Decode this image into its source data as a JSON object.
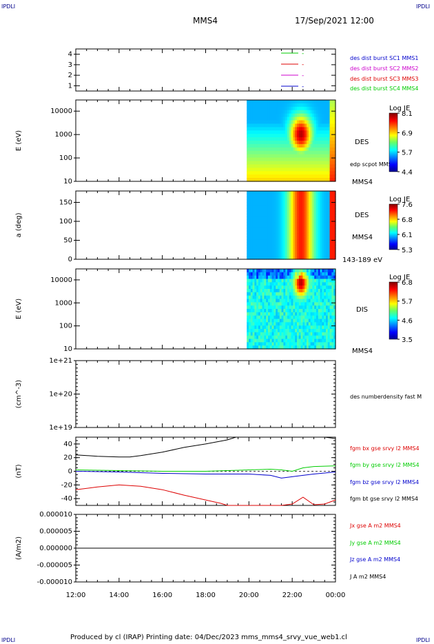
{
  "header": {
    "corner_label": "IPDLI",
    "spacecraft": "MMS4",
    "datetime": "17/Sep/2021 12:00"
  },
  "footer": {
    "text": "Produced by cl (IRAP)   Printing date: 04/Dec/2023   mms_mms4_srvy_vue_web1.cl"
  },
  "colors": {
    "blue": "#0000cc",
    "magenta": "#cc00cc",
    "red": "#dd0000",
    "green": "#00cc00",
    "black": "#000000"
  },
  "x_axis": {
    "ticks": [
      "12:00",
      "14:00",
      "16:00",
      "18:00",
      "20:00",
      "22:00",
      "00:00"
    ],
    "range_hours": [
      12,
      24
    ]
  },
  "chart_data": [
    {
      "type": "line",
      "panel": "spacecraft-config",
      "ylim": [
        0.5,
        4.5
      ],
      "y_ticks": [
        "1",
        "2",
        "3",
        "4"
      ],
      "legend": [
        {
          "name": "des dist burst SC1 MMS1",
          "color": "#0000cc"
        },
        {
          "name": "des dist burst SC2 MMS2",
          "color": "#cc00cc"
        },
        {
          "name": "des dist burst SC3 MMS3",
          "color": "#dd0000"
        },
        {
          "name": "des dist burst SC4 MMS4",
          "color": "#00cc00"
        }
      ],
      "inner_legend": [
        {
          "color": "#00cc00",
          "mark": "-"
        },
        {
          "color": "#dd0000",
          "mark": "-"
        },
        {
          "color": "#cc00cc",
          "mark": "-"
        },
        {
          "color": "#0000cc",
          "mark": "-"
        }
      ]
    },
    {
      "type": "heatmap",
      "panel": "des-energy",
      "ylabel": "E (eV)",
      "y_scale": "log",
      "ylim": [
        10,
        30000
      ],
      "y_ticks": [
        "10000",
        "1000",
        "100",
        "10"
      ],
      "right_label": "DES",
      "right_sub": "edp scpot MMS4",
      "right_bottom": "MMS4",
      "colorbar": {
        "label": "Log JE",
        "ticks": [
          "8.1",
          "6.9",
          "5.7",
          "4.4"
        ]
      },
      "data_start_hour": 19.9
    },
    {
      "type": "heatmap",
      "panel": "des-pitch",
      "ylabel": "a (deg)",
      "ylim": [
        0,
        180
      ],
      "y_ticks": [
        "150",
        "100",
        "50",
        "0"
      ],
      "right_label": "DES",
      "right_sub": "MMS4",
      "right_bottom": "143-189 eV",
      "colorbar": {
        "label": "Log JE",
        "ticks": [
          "7.6",
          "6.8",
          "6.1",
          "5.3"
        ]
      },
      "data_start_hour": 19.9
    },
    {
      "type": "heatmap",
      "panel": "dis-energy",
      "ylabel": "E (eV)",
      "y_scale": "log",
      "ylim": [
        10,
        30000
      ],
      "y_ticks": [
        "10000",
        "1000",
        "100",
        "10"
      ],
      "right_label": "DIS",
      "right_bottom": "MMS4",
      "colorbar": {
        "label": "Log JE",
        "ticks": [
          "6.8",
          "5.7",
          "4.6",
          "3.5"
        ]
      },
      "data_start_hour": 19.9
    },
    {
      "type": "line",
      "panel": "density",
      "ylabel": "(cm^-3)",
      "y_scale": "log",
      "y_ticks": [
        "1e+21",
        "1e+20",
        "1e+19"
      ],
      "legend": [
        {
          "name": "des numberdensity fast M",
          "color": "#000000"
        }
      ]
    },
    {
      "type": "line",
      "panel": "magnetic-field",
      "ylabel": "(nT)",
      "ylim": [
        -50,
        50
      ],
      "y_ticks": [
        "40",
        "20",
        "0",
        "-20",
        "-40"
      ],
      "legend": [
        {
          "name": "fgm bx gse srvy l2 MMS4",
          "color": "#dd0000"
        },
        {
          "name": "fgm by gse srvy l2 MMS4",
          "color": "#00cc00"
        },
        {
          "name": "fgm bz gse srvy l2 MMS4",
          "color": "#0000cc"
        },
        {
          "name": "fgm bt gse srvy l2 MMS4",
          "color": "#000000"
        }
      ],
      "series": [
        {
          "key": "bt",
          "color": "#000000",
          "x": [
            12.0,
            13.0,
            14.0,
            14.5,
            15.0,
            16.0,
            17.0,
            18.0,
            19.0,
            19.4,
            21.0,
            21.3,
            22.5,
            23.0,
            23.5,
            24.0
          ],
          "y": [
            24,
            22,
            21,
            21,
            23,
            28,
            35,
            40,
            46,
            50,
            50,
            50,
            50,
            50,
            50,
            48
          ]
        },
        {
          "key": "bx",
          "color": "#dd0000",
          "x": [
            12.0,
            13.0,
            14.0,
            15.0,
            16.0,
            17.0,
            18.0,
            18.7,
            19.0,
            21.5,
            22.0,
            22.5,
            23.0,
            23.5,
            24.0
          ],
          "y": [
            -27,
            -23,
            -20,
            -22,
            -27,
            -35,
            -42,
            -47,
            -50,
            -50,
            -48,
            -38,
            -49,
            -48,
            -42
          ]
        },
        {
          "key": "by",
          "color": "#00cc00",
          "x": [
            12.0,
            14.0,
            16.0,
            18.0,
            20.0,
            21.0,
            21.5,
            22.0,
            22.5,
            23.0,
            24.0
          ],
          "y": [
            2,
            1,
            0,
            0,
            2,
            3,
            2,
            0,
            5,
            7,
            8
          ]
        },
        {
          "key": "bz",
          "color": "#0000cc",
          "x": [
            12.0,
            14.0,
            15.0,
            16.0,
            18.0,
            20.0,
            21.0,
            21.5,
            22.0,
            22.5,
            23.0,
            24.0
          ],
          "y": [
            0,
            -1,
            -2,
            -3,
            -4,
            -4,
            -6,
            -10,
            -8,
            -6,
            -4,
            -1
          ]
        }
      ]
    },
    {
      "type": "line",
      "panel": "current-density",
      "ylabel": "(A/m2)",
      "ylim": [
        -1e-05,
        1e-05
      ],
      "y_ticks": [
        "0.000010",
        "0.000005",
        "0.000000",
        "-0.000005",
        "-0.000010"
      ],
      "legend": [
        {
          "name": "Jx gse A m2 MMS4",
          "color": "#dd0000"
        },
        {
          "name": "Jy gse A m2 MMS4",
          "color": "#00cc00"
        },
        {
          "name": "Jz gse A m2 MMS4",
          "color": "#0000cc"
        },
        {
          "name": "J A m2 MMS4",
          "color": "#000000"
        }
      ],
      "series": [
        {
          "key": "j",
          "color": "#000000",
          "x": [
            12,
            24
          ],
          "y": [
            0,
            0
          ]
        }
      ]
    }
  ]
}
